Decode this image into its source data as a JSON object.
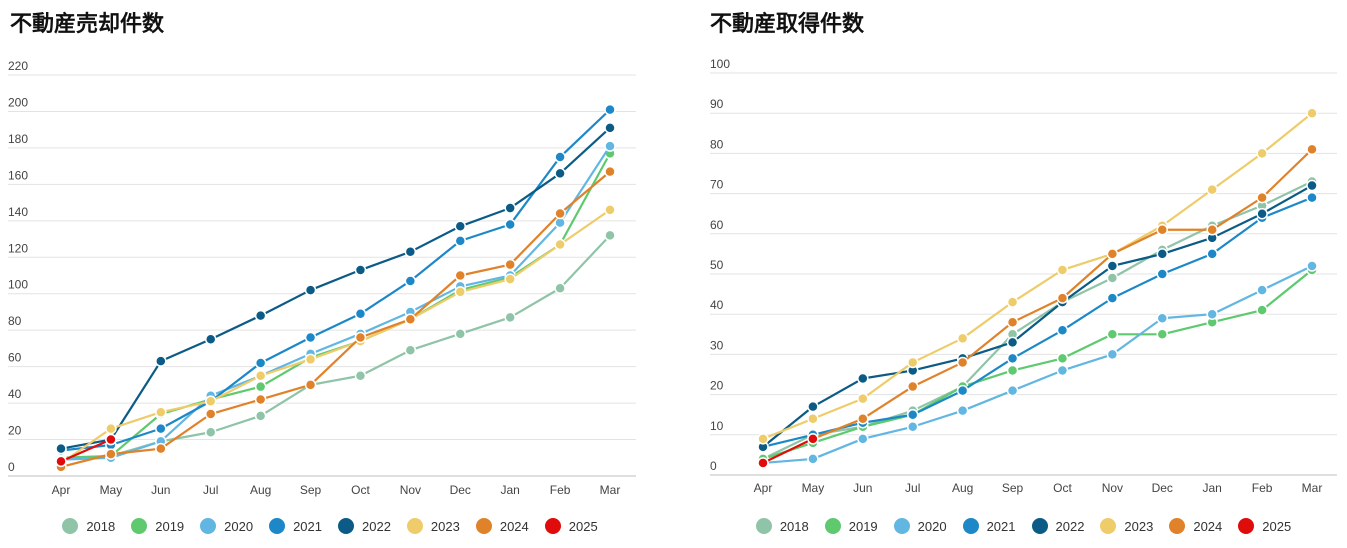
{
  "chart_data": [
    {
      "type": "line",
      "title": "不動産売却件数",
      "categories": [
        "Apr",
        "May",
        "Jun",
        "Jul",
        "Aug",
        "Sep",
        "Oct",
        "Nov",
        "Dec",
        "Jan",
        "Feb",
        "Mar"
      ],
      "ylim": [
        0,
        220
      ],
      "yticks": [
        0,
        20,
        40,
        60,
        80,
        100,
        120,
        140,
        160,
        180,
        200,
        220
      ],
      "grid": true,
      "legend_position": "bottom",
      "series": [
        {
          "name": "2018",
          "color": "#8fc4a8",
          "values": [
            9,
            11,
            19,
            24,
            33,
            50,
            55,
            69,
            78,
            87,
            103,
            132
          ]
        },
        {
          "name": "2019",
          "color": "#5ec96e",
          "values": [
            10,
            11,
            34,
            42,
            49,
            65,
            74,
            86,
            102,
            109,
            127,
            177
          ]
        },
        {
          "name": "2020",
          "color": "#62b6e2",
          "values": [
            9,
            10,
            19,
            44,
            55,
            67,
            78,
            90,
            104,
            110,
            139,
            181
          ]
        },
        {
          "name": "2021",
          "color": "#1d88c8",
          "values": [
            14,
            17,
            26,
            41,
            62,
            76,
            89,
            107,
            129,
            138,
            175,
            201
          ]
        },
        {
          "name": "2022",
          "color": "#0b5b86",
          "values": [
            15,
            20,
            63,
            75,
            88,
            102,
            113,
            123,
            137,
            147,
            166,
            191
          ]
        },
        {
          "name": "2023",
          "color": "#efcc6a",
          "values": [
            7,
            26,
            35,
            41,
            55,
            64,
            74,
            86,
            101,
            108,
            127,
            146
          ]
        },
        {
          "name": "2024",
          "color": "#e0822a",
          "values": [
            5,
            12,
            15,
            34,
            42,
            50,
            76,
            86,
            110,
            116,
            144,
            167
          ]
        },
        {
          "name": "2025",
          "color": "#e00b0b",
          "values": [
            8,
            20,
            null,
            null,
            null,
            null,
            null,
            null,
            null,
            null,
            null,
            null
          ]
        }
      ]
    },
    {
      "type": "line",
      "title": "不動産取得件数",
      "categories": [
        "Apr",
        "May",
        "Jun",
        "Jul",
        "Aug",
        "Sep",
        "Oct",
        "Nov",
        "Dec",
        "Jan",
        "Feb",
        "Mar"
      ],
      "ylim": [
        0,
        100
      ],
      "yticks": [
        0,
        10,
        20,
        30,
        40,
        50,
        60,
        70,
        80,
        90,
        100
      ],
      "grid": true,
      "legend_position": "bottom",
      "series": [
        {
          "name": "2018",
          "color": "#8fc4a8",
          "values": [
            4,
            10,
            12,
            16,
            22,
            35,
            43,
            49,
            56,
            62,
            67,
            73
          ]
        },
        {
          "name": "2019",
          "color": "#5ec96e",
          "values": [
            4,
            8,
            12,
            15,
            22,
            26,
            29,
            35,
            35,
            38,
            41,
            51
          ]
        },
        {
          "name": "2020",
          "color": "#62b6e2",
          "values": [
            3,
            4,
            9,
            12,
            16,
            21,
            26,
            30,
            39,
            40,
            46,
            52
          ]
        },
        {
          "name": "2021",
          "color": "#1d88c8",
          "values": [
            7,
            10,
            13,
            15,
            21,
            29,
            36,
            44,
            50,
            55,
            64,
            69
          ]
        },
        {
          "name": "2022",
          "color": "#0b5b86",
          "values": [
            7,
            17,
            24,
            26,
            29,
            33,
            43,
            52,
            55,
            59,
            65,
            72
          ]
        },
        {
          "name": "2023",
          "color": "#efcc6a",
          "values": [
            9,
            14,
            19,
            28,
            34,
            43,
            51,
            55,
            62,
            71,
            80,
            90
          ]
        },
        {
          "name": "2024",
          "color": "#e0822a",
          "values": [
            3,
            9,
            14,
            22,
            28,
            38,
            44,
            55,
            61,
            61,
            69,
            81
          ]
        },
        {
          "name": "2025",
          "color": "#e00b0b",
          "values": [
            3,
            9,
            null,
            null,
            null,
            null,
            null,
            null,
            null,
            null,
            null,
            null
          ]
        }
      ]
    }
  ]
}
